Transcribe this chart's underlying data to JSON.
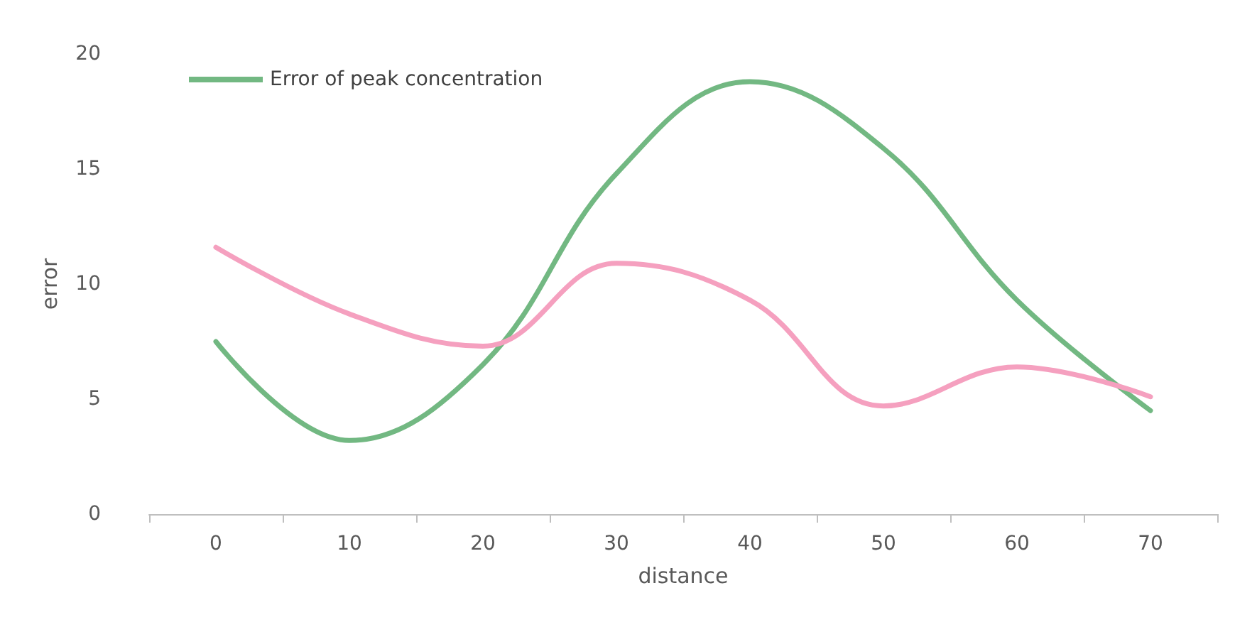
{
  "chart_data": {
    "type": "line",
    "xlabel": "distance",
    "ylabel": "error",
    "categories": [
      "0",
      "10",
      "20",
      "30",
      "40",
      "50",
      "60",
      "70"
    ],
    "series": [
      {
        "name": "Error of peak concentration",
        "color": "#72b882",
        "values": [
          7.5,
          3.2,
          6.5,
          14.8,
          18.8,
          15.9,
          9.3,
          4.5
        ]
      },
      {
        "color": "#f5a0bf",
        "values": [
          11.6,
          8.7,
          7.3,
          10.9,
          9.3,
          4.7,
          6.4,
          5.1
        ]
      }
    ],
    "ylim": [
      0,
      20
    ],
    "yticks": [
      0,
      5,
      10,
      15,
      20
    ],
    "grid": false,
    "legend": "top left",
    "marker": "none",
    "line_style": "solid"
  }
}
